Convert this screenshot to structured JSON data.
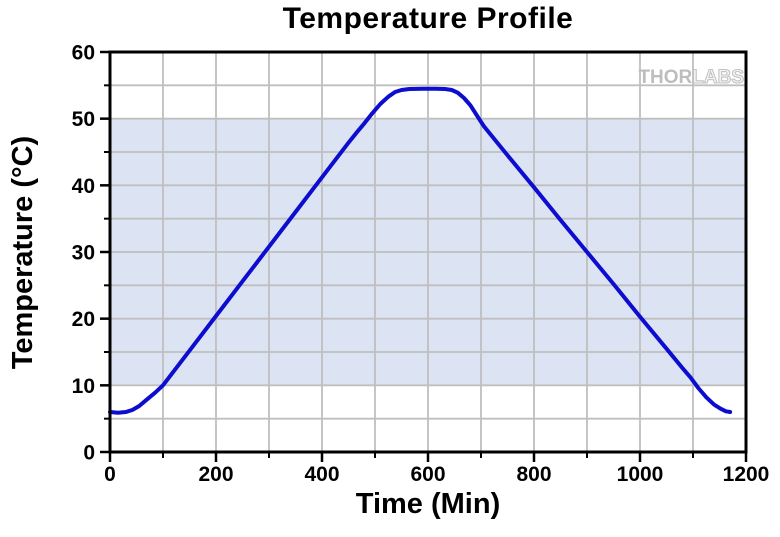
{
  "title": "Temperature Profile",
  "watermark": {
    "part1": "THOR",
    "part2": "LABS"
  },
  "chart_data": {
    "type": "line",
    "title": "Temperature Profile",
    "xlabel": "Time (Min)",
    "ylabel": "Temperature (°C)",
    "xlim": [
      0,
      1200
    ],
    "ylim": [
      0,
      60
    ],
    "x_major_ticks": [
      0,
      200,
      400,
      600,
      800,
      1000,
      1200
    ],
    "x_minor_ticks": [
      100,
      300,
      500,
      700,
      900,
      1100
    ],
    "y_major_ticks": [
      0,
      10,
      20,
      30,
      40,
      50,
      60
    ],
    "y_minor_ticks": [
      5,
      15,
      25,
      35,
      45,
      55
    ],
    "grid": {
      "x_every": 100,
      "y_every": 5,
      "color": "#bfbfbf",
      "on": true
    },
    "band": {
      "y_from": 10,
      "y_to": 50,
      "color": "#dce4f3"
    },
    "legend": "none",
    "series": [
      {
        "name": "Temperature",
        "color": "#0d0dd0",
        "width": 4,
        "points": [
          [
            0,
            6.0
          ],
          [
            15,
            5.9
          ],
          [
            30,
            6.0
          ],
          [
            42,
            6.3
          ],
          [
            55,
            6.9
          ],
          [
            70,
            7.9
          ],
          [
            85,
            8.9
          ],
          [
            100,
            10.0
          ],
          [
            150,
            15.2
          ],
          [
            200,
            20.4
          ],
          [
            250,
            25.6
          ],
          [
            300,
            30.8
          ],
          [
            350,
            36.0
          ],
          [
            400,
            41.2
          ],
          [
            450,
            46.4
          ],
          [
            465,
            47.9
          ],
          [
            480,
            49.3
          ],
          [
            495,
            50.8
          ],
          [
            510,
            52.2
          ],
          [
            525,
            53.3
          ],
          [
            538,
            54.0
          ],
          [
            550,
            54.3
          ],
          [
            565,
            54.45
          ],
          [
            590,
            54.5
          ],
          [
            615,
            54.5
          ],
          [
            632,
            54.45
          ],
          [
            645,
            54.3
          ],
          [
            656,
            53.9
          ],
          [
            668,
            53.1
          ],
          [
            680,
            52.0
          ],
          [
            692,
            50.5
          ],
          [
            705,
            48.9
          ],
          [
            750,
            44.5
          ],
          [
            800,
            39.7
          ],
          [
            850,
            34.8
          ],
          [
            900,
            30.0
          ],
          [
            950,
            25.2
          ],
          [
            1000,
            20.3
          ],
          [
            1050,
            15.5
          ],
          [
            1080,
            12.6
          ],
          [
            1095,
            11.2
          ],
          [
            1110,
            9.6
          ],
          [
            1125,
            8.2
          ],
          [
            1140,
            7.1
          ],
          [
            1152,
            6.5
          ],
          [
            1162,
            6.1
          ],
          [
            1170,
            6.0
          ]
        ]
      }
    ],
    "frame_color": "#000000",
    "tick_label_size": 21
  }
}
